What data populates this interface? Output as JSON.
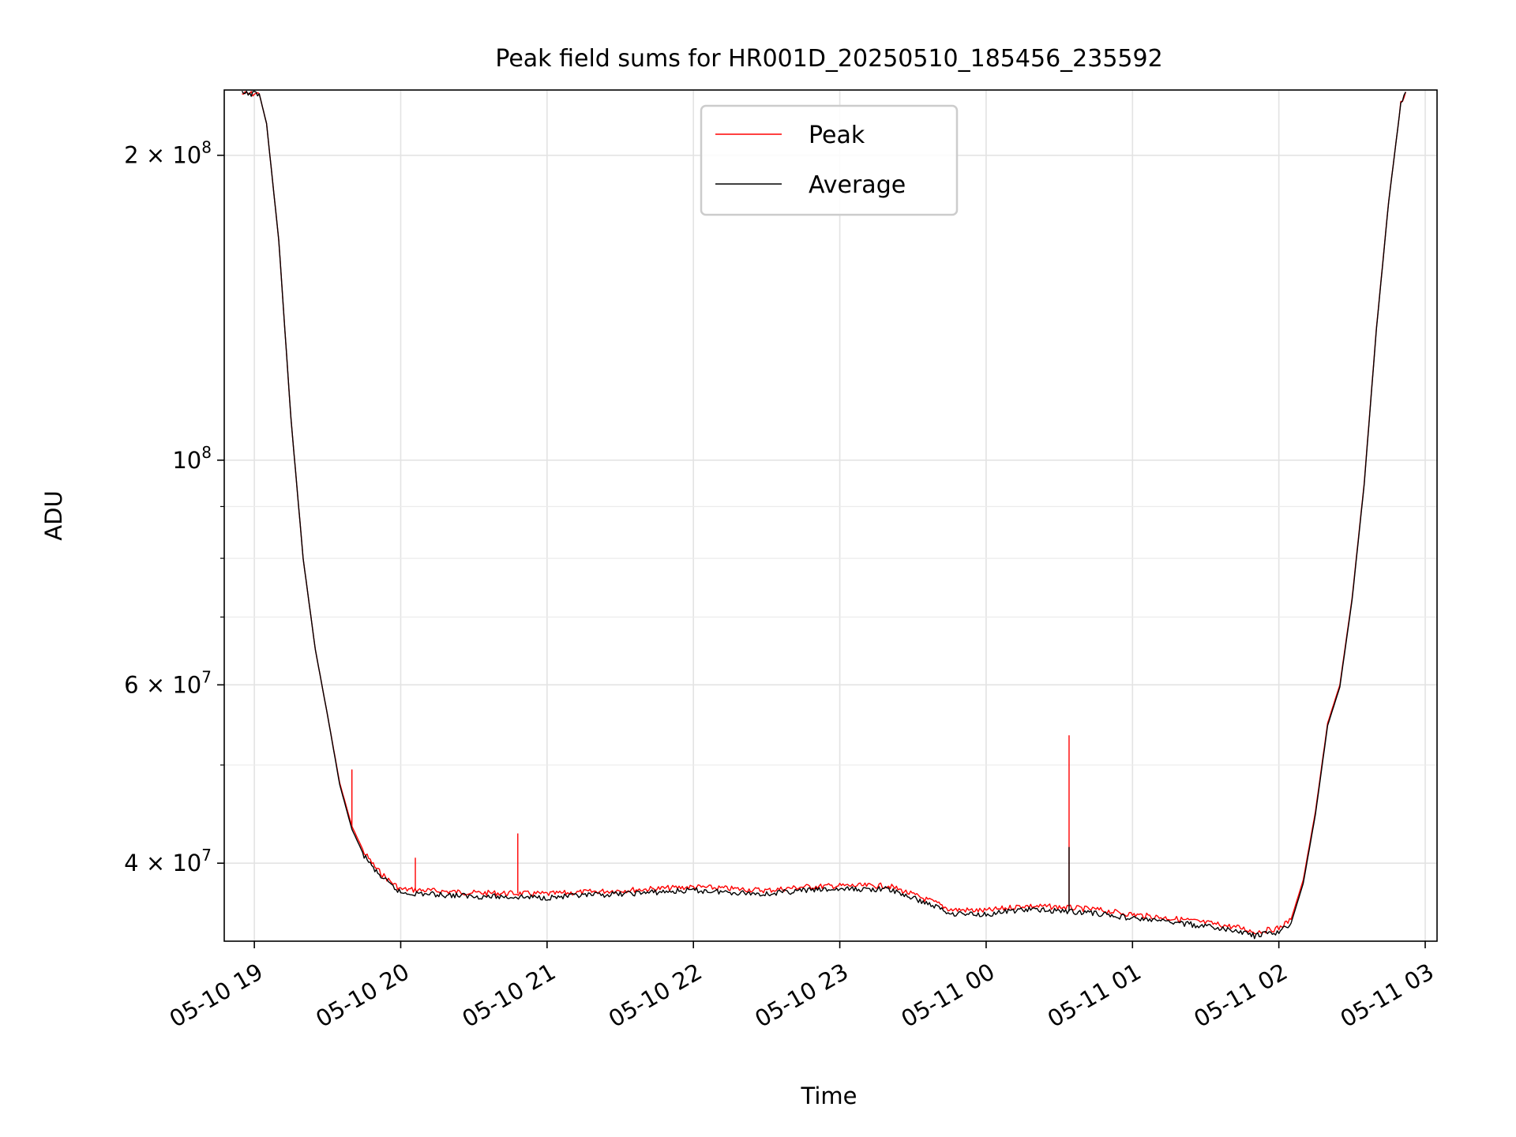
{
  "chart_data": {
    "type": "line",
    "title": "Peak field sums for HR001D_20250510_185456_235592",
    "xlabel": "Time",
    "ylabel": "ADU",
    "yscale": "log",
    "ylim": [
      33500000,
      232000000
    ],
    "xlim": [
      "2025-05-10 18:54:56",
      "2025-05-11 03:00:00"
    ],
    "grid": true,
    "legend": "upper center",
    "x_ticks": [
      "05-10 19",
      "05-10 20",
      "05-10 21",
      "05-10 22",
      "05-10 23",
      "05-11 00",
      "05-11 01",
      "05-11 02",
      "05-11 03"
    ],
    "y_ticks": [
      {
        "value": 200000000,
        "mantissa": "2",
        "exponent": "8"
      },
      {
        "value": 100000000,
        "mantissa": "",
        "exponent": "8"
      },
      {
        "value": 60000000,
        "mantissa": "6",
        "exponent": "7"
      },
      {
        "value": 40000000,
        "mantissa": "4",
        "exponent": "7"
      }
    ],
    "y_minor_ticks": [
      50000000,
      70000000,
      80000000,
      90000000
    ],
    "series": [
      {
        "name": "Peak",
        "color": "#ff0000",
        "x": [
          "2025-05-10 18:54:56",
          "2025-05-10 19:00",
          "2025-05-10 19:02",
          "2025-05-10 19:05",
          "2025-05-10 19:10",
          "2025-05-10 19:15",
          "2025-05-10 19:20",
          "2025-05-10 19:25",
          "2025-05-10 19:30",
          "2025-05-10 19:35",
          "2025-05-10 19:40",
          "2025-05-10 19:45",
          "2025-05-10 19:50",
          "2025-05-10 19:55",
          "2025-05-10 20:00",
          "2025-05-10 20:30",
          "2025-05-10 21:00",
          "2025-05-10 21:30",
          "2025-05-10 22:00",
          "2025-05-10 22:30",
          "2025-05-10 22:45",
          "2025-05-10 23:00",
          "2025-05-10 23:20",
          "2025-05-10 23:40",
          "2025-05-10 23:45",
          "2025-05-11 00:00",
          "2025-05-11 00:15",
          "2025-05-11 00:30",
          "2025-05-11 00:45",
          "2025-05-11 01:00",
          "2025-05-11 01:20",
          "2025-05-11 01:35",
          "2025-05-11 01:45",
          "2025-05-11 01:50",
          "2025-05-11 02:00",
          "2025-05-11 02:05",
          "2025-05-11 02:10",
          "2025-05-11 02:15",
          "2025-05-11 02:20",
          "2025-05-11 02:25",
          "2025-05-11 02:30",
          "2025-05-11 02:35",
          "2025-05-11 02:40",
          "2025-05-11 02:45",
          "2025-05-11 02:50",
          "2025-05-11 02:52"
        ],
        "y": [
          230000000,
          230000000,
          230000000,
          215000000,
          165000000,
          110000000,
          80000000,
          65000000,
          56000000,
          48000000,
          43500000,
          41000000,
          39500000,
          38500000,
          37700000,
          37400000,
          37300000,
          37600000,
          37900000,
          37600000,
          37900000,
          38000000,
          38000000,
          36500000,
          36000000,
          35900000,
          36300000,
          36200000,
          36000000,
          35600000,
          35200000,
          34800000,
          34500000,
          34200000,
          34500000,
          35200000,
          38500000,
          45000000,
          55000000,
          60000000,
          73000000,
          95000000,
          135000000,
          180000000,
          225000000,
          231000000
        ],
        "spikes": [
          {
            "x": "2025-05-10 19:40",
            "y": 49500000
          },
          {
            "x": "2025-05-10 20:06",
            "y": 40500000
          },
          {
            "x": "2025-05-10 20:48",
            "y": 42800000
          },
          {
            "x": "2025-05-11 00:34",
            "y": 53500000
          },
          {
            "x": "2025-05-11 02:07",
            "y": 36300000
          }
        ]
      },
      {
        "name": "Average",
        "color": "#000000",
        "x": [
          "2025-05-10 18:54:56",
          "2025-05-10 19:00",
          "2025-05-10 19:02",
          "2025-05-10 19:05",
          "2025-05-10 19:10",
          "2025-05-10 19:15",
          "2025-05-10 19:20",
          "2025-05-10 19:25",
          "2025-05-10 19:30",
          "2025-05-10 19:35",
          "2025-05-10 19:40",
          "2025-05-10 19:45",
          "2025-05-10 19:50",
          "2025-05-10 19:55",
          "2025-05-10 20:00",
          "2025-05-10 20:30",
          "2025-05-10 21:00",
          "2025-05-10 21:30",
          "2025-05-10 22:00",
          "2025-05-10 22:30",
          "2025-05-10 22:45",
          "2025-05-10 23:00",
          "2025-05-10 23:20",
          "2025-05-10 23:40",
          "2025-05-10 23:45",
          "2025-05-11 00:00",
          "2025-05-11 00:15",
          "2025-05-11 00:30",
          "2025-05-11 00:45",
          "2025-05-11 01:00",
          "2025-05-11 01:20",
          "2025-05-11 01:35",
          "2025-05-11 01:45",
          "2025-05-11 01:50",
          "2025-05-11 02:00",
          "2025-05-11 02:05",
          "2025-05-11 02:10",
          "2025-05-11 02:15",
          "2025-05-11 02:20",
          "2025-05-11 02:25",
          "2025-05-11 02:30",
          "2025-05-11 02:35",
          "2025-05-11 02:40",
          "2025-05-11 02:45",
          "2025-05-11 02:50",
          "2025-05-11 02:52"
        ],
        "y": [
          230000000,
          230000000,
          230000000,
          215000000,
          165000000,
          110000000,
          80000000,
          65000000,
          56000000,
          47800000,
          43200000,
          40700000,
          39200000,
          38200000,
          37400000,
          37100000,
          37000000,
          37300000,
          37600000,
          37300000,
          37600000,
          37700000,
          37700000,
          36200000,
          35700000,
          35600000,
          36000000,
          35900000,
          35700000,
          35300000,
          34900000,
          34500000,
          34200000,
          33900000,
          34200000,
          34900000,
          38200000,
          44700000,
          54700000,
          59700000,
          72700000,
          94700000,
          134700000,
          179700000,
          225000000,
          231000000
        ],
        "spikes": [
          {
            "x": "2025-05-11 00:34",
            "y": 41500000
          }
        ]
      }
    ]
  }
}
